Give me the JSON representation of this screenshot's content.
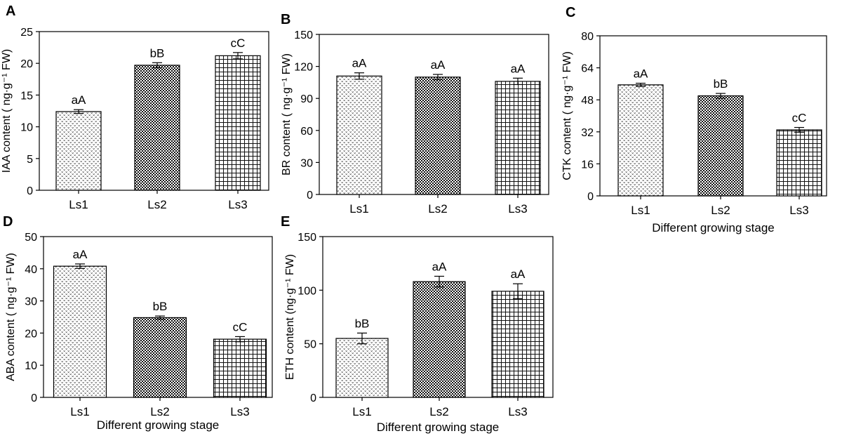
{
  "chart_data": [
    {
      "panel": "A",
      "type": "bar",
      "categories": [
        "Ls1",
        "Ls2",
        "Ls3"
      ],
      "values": [
        12.4,
        19.7,
        21.2
      ],
      "errors": [
        0.3,
        0.4,
        0.5
      ],
      "significance": [
        "aA",
        "bB",
        "cC"
      ],
      "ylabel": "IAA content ( ng·g⁻¹ FW)",
      "xlabel": "",
      "ylim": [
        0,
        25
      ],
      "yticks": [
        0,
        5,
        10,
        15,
        20,
        25
      ],
      "patterns": [
        "dots",
        "checker",
        "grid"
      ]
    },
    {
      "panel": "B",
      "type": "bar",
      "categories": [
        "Ls1",
        "Ls2",
        "Ls3"
      ],
      "values": [
        111,
        110,
        106
      ],
      "errors": [
        3,
        2.5,
        3
      ],
      "significance": [
        "aA",
        "aA",
        "aA"
      ],
      "ylabel": "BR content ( ng·g⁻¹ FW)",
      "xlabel": "",
      "ylim": [
        0,
        150
      ],
      "yticks": [
        0,
        30,
        60,
        90,
        120,
        150
      ],
      "patterns": [
        "dots",
        "checker",
        "grid"
      ]
    },
    {
      "panel": "C",
      "type": "bar",
      "categories": [
        "Ls1",
        "Ls2",
        "Ls3"
      ],
      "values": [
        55.5,
        50,
        33
      ],
      "errors": [
        0.8,
        1.2,
        1.2
      ],
      "significance": [
        "aA",
        "bB",
        "cC"
      ],
      "ylabel": "CTK content ( ng·g⁻¹ FW)",
      "xlabel": "Different growing stage",
      "ylim": [
        0,
        80
      ],
      "yticks": [
        0,
        16,
        32,
        48,
        64,
        80
      ],
      "patterns": [
        "dots",
        "checker",
        "grid"
      ]
    },
    {
      "panel": "D",
      "type": "bar",
      "categories": [
        "Ls1",
        "Ls2",
        "Ls3"
      ],
      "values": [
        40.8,
        24.8,
        18.1
      ],
      "errors": [
        0.7,
        0.5,
        0.8
      ],
      "significance": [
        "aA",
        "bB",
        "cC"
      ],
      "ylabel": "ABA content ( ng·g⁻¹ FW)",
      "xlabel": "Different growing stage",
      "ylim": [
        0,
        50
      ],
      "yticks": [
        0,
        10,
        20,
        30,
        40,
        50
      ],
      "patterns": [
        "dots",
        "checker",
        "grid"
      ]
    },
    {
      "panel": "E",
      "type": "bar",
      "categories": [
        "Ls1",
        "Ls2",
        "Ls3"
      ],
      "values": [
        55,
        108,
        99
      ],
      "errors": [
        5,
        5,
        7
      ],
      "significance": [
        "bB",
        "aA",
        "aA"
      ],
      "ylabel": "ETH content (ng·g⁻¹ FW)",
      "xlabel": "Different growing stage",
      "ylim": [
        0,
        150
      ],
      "yticks": [
        0,
        50,
        100,
        150
      ],
      "patterns": [
        "dots",
        "checker",
        "grid"
      ]
    }
  ]
}
